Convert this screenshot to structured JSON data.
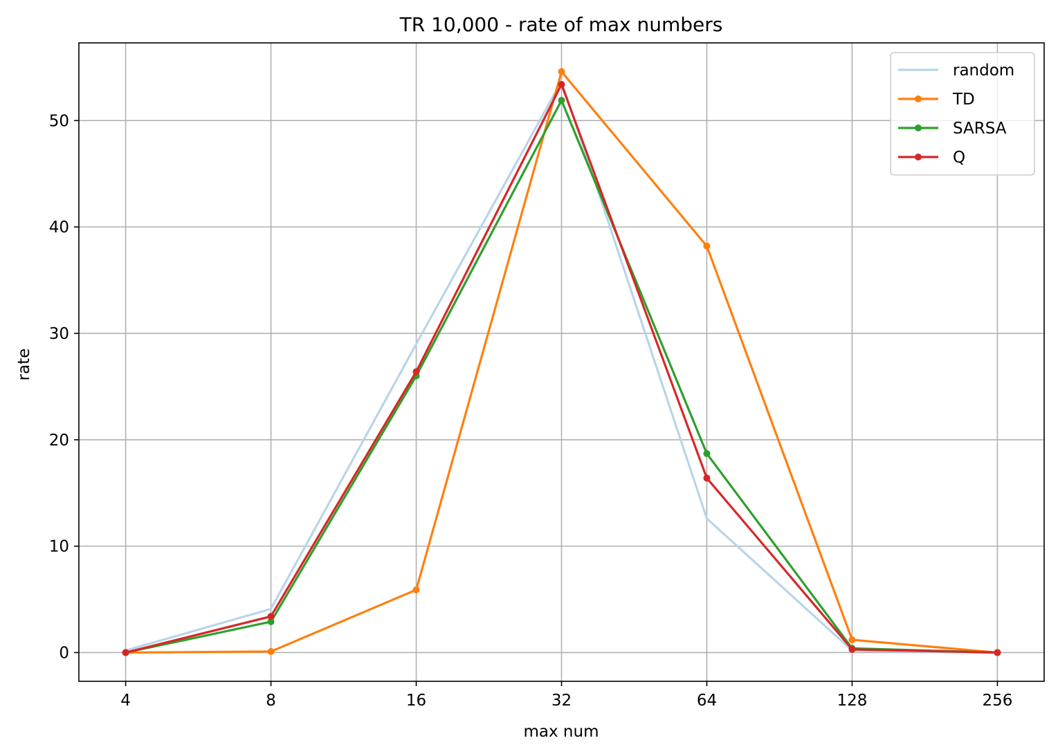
{
  "chart_data": {
    "type": "line",
    "title": "TR 10,000 - rate of max numbers",
    "xlabel": "max num",
    "ylabel": "rate",
    "x_scale": "log2",
    "categories": [
      "4",
      "8",
      "16",
      "32",
      "64",
      "128",
      "256"
    ],
    "y_ticks": [
      "0",
      "10",
      "20",
      "30",
      "40",
      "50"
    ],
    "xlim": [
      3.2,
      320
    ],
    "ylim": [
      -2.7,
      57.3
    ],
    "grid": true,
    "legend_position": "top-right",
    "series": [
      {
        "name": "random",
        "color": "#b9d5e8",
        "markers": false,
        "values": [
          0.2,
          4.1,
          29.0,
          53.7,
          12.6,
          0.2,
          0.0
        ]
      },
      {
        "name": "TD",
        "color": "#ff7f0e",
        "markers": true,
        "values": [
          0.0,
          0.1,
          5.9,
          54.6,
          38.2,
          1.2,
          0.0
        ]
      },
      {
        "name": "SARSA",
        "color": "#2ca02c",
        "markers": true,
        "values": [
          0.0,
          2.9,
          26.0,
          51.9,
          18.7,
          0.4,
          0.0
        ]
      },
      {
        "name": "Q",
        "color": "#d62728",
        "markers": true,
        "values": [
          0.0,
          3.4,
          26.4,
          53.4,
          16.4,
          0.3,
          0.0
        ]
      }
    ]
  }
}
